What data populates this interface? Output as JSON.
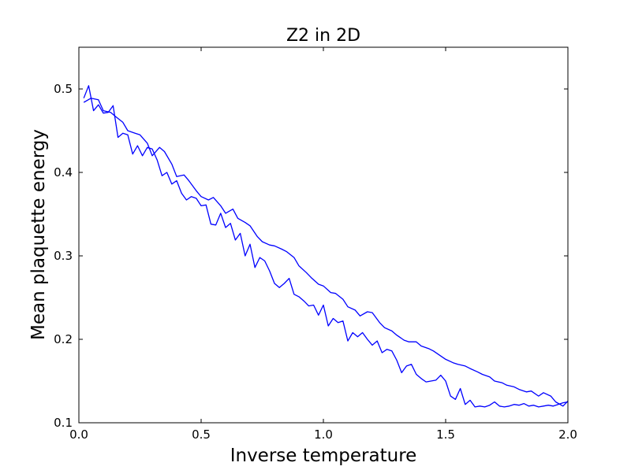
{
  "chart_data": {
    "type": "line",
    "title": "Z2 in 2D",
    "xlabel": "Inverse temperature",
    "ylabel": "Mean plaquette energy",
    "xlim": [
      0.0,
      2.0
    ],
    "ylim": [
      0.1,
      0.55
    ],
    "grid": false,
    "x_ticks": [
      "0.0",
      "0.5",
      "1.0",
      "1.5",
      "2.0"
    ],
    "y_ticks": [
      "0.1",
      "0.2",
      "0.3",
      "0.4",
      "0.5"
    ],
    "color": "#0000ff",
    "series": [
      {
        "x": [
          0.02,
          0.04,
          0.06,
          0.08,
          0.1,
          0.12,
          0.14,
          0.16,
          0.18,
          0.2,
          0.22,
          0.24,
          0.26,
          0.28,
          0.3,
          0.32,
          0.34,
          0.36,
          0.38,
          0.4,
          0.42,
          0.44,
          0.46,
          0.48,
          0.5,
          0.52,
          0.54,
          0.56,
          0.58,
          0.6,
          0.62,
          0.64,
          0.66,
          0.68,
          0.7,
          0.72,
          0.74,
          0.76,
          0.78,
          0.8,
          0.82,
          0.84,
          0.86,
          0.88,
          0.9,
          0.92,
          0.94,
          0.96,
          0.98,
          1.0,
          1.02,
          1.04,
          1.06,
          1.08,
          1.1,
          1.12,
          1.14,
          1.16,
          1.18,
          1.2,
          1.22,
          1.24,
          1.26,
          1.28,
          1.3,
          1.32,
          1.34,
          1.36,
          1.38,
          1.4,
          1.42,
          1.44,
          1.46,
          1.48,
          1.5,
          1.52,
          1.54,
          1.56,
          1.58,
          1.6,
          1.62,
          1.64,
          1.66,
          1.68,
          1.7,
          1.72,
          1.74,
          1.76,
          1.78,
          1.8,
          1.82,
          1.84,
          1.86,
          1.88,
          1.9,
          1.92,
          1.94,
          1.96,
          1.98,
          2.0
        ],
        "y": [
          0.489,
          0.504,
          0.474,
          0.481,
          0.471,
          0.472,
          0.48,
          0.442,
          0.447,
          0.445,
          0.422,
          0.432,
          0.42,
          0.43,
          0.428,
          0.415,
          0.396,
          0.4,
          0.386,
          0.39,
          0.375,
          0.367,
          0.371,
          0.369,
          0.36,
          0.361,
          0.338,
          0.337,
          0.351,
          0.334,
          0.339,
          0.319,
          0.327,
          0.3,
          0.314,
          0.286,
          0.298,
          0.294,
          0.282,
          0.267,
          0.262,
          0.267,
          0.273,
          0.254,
          0.251,
          0.246,
          0.24,
          0.241,
          0.229,
          0.241,
          0.216,
          0.225,
          0.22,
          0.222,
          0.198,
          0.208,
          0.203,
          0.208,
          0.2,
          0.193,
          0.198,
          0.184,
          0.188,
          0.186,
          0.175,
          0.16,
          0.168,
          0.17,
          0.158,
          0.153,
          0.149,
          0.15,
          0.151,
          0.157,
          0.15,
          0.132,
          0.128,
          0.141,
          0.122,
          0.127,
          0.119,
          0.12,
          0.119,
          0.121,
          0.125,
          0.12,
          0.119,
          0.12,
          0.122,
          0.121,
          0.123,
          0.12,
          0.121,
          0.119,
          0.12,
          0.121,
          0.12,
          0.122,
          0.124,
          0.125
        ]
      },
      {
        "x": [
          0.02,
          0.05,
          0.08,
          0.1,
          0.13,
          0.15,
          0.18,
          0.2,
          0.23,
          0.25,
          0.28,
          0.3,
          0.33,
          0.35,
          0.38,
          0.4,
          0.43,
          0.45,
          0.48,
          0.5,
          0.53,
          0.55,
          0.58,
          0.6,
          0.63,
          0.65,
          0.68,
          0.7,
          0.73,
          0.75,
          0.78,
          0.8,
          0.83,
          0.85,
          0.88,
          0.9,
          0.93,
          0.95,
          0.98,
          1.0,
          1.03,
          1.05,
          1.08,
          1.1,
          1.13,
          1.15,
          1.18,
          1.2,
          1.23,
          1.25,
          1.28,
          1.3,
          1.33,
          1.35,
          1.38,
          1.4,
          1.43,
          1.45,
          1.48,
          1.5,
          1.53,
          1.55,
          1.58,
          1.6,
          1.63,
          1.65,
          1.68,
          1.7,
          1.73,
          1.75,
          1.78,
          1.8,
          1.83,
          1.85,
          1.88,
          1.9,
          1.93,
          1.95,
          1.98,
          2.0
        ],
        "y": [
          0.484,
          0.489,
          0.487,
          0.474,
          0.472,
          0.467,
          0.46,
          0.45,
          0.447,
          0.445,
          0.435,
          0.42,
          0.43,
          0.425,
          0.41,
          0.395,
          0.397,
          0.39,
          0.378,
          0.371,
          0.367,
          0.37,
          0.36,
          0.351,
          0.356,
          0.345,
          0.34,
          0.336,
          0.323,
          0.317,
          0.313,
          0.312,
          0.308,
          0.305,
          0.298,
          0.288,
          0.28,
          0.274,
          0.266,
          0.264,
          0.256,
          0.255,
          0.248,
          0.239,
          0.235,
          0.228,
          0.233,
          0.232,
          0.22,
          0.214,
          0.21,
          0.205,
          0.199,
          0.197,
          0.197,
          0.192,
          0.189,
          0.186,
          0.18,
          0.176,
          0.172,
          0.17,
          0.168,
          0.165,
          0.161,
          0.158,
          0.155,
          0.15,
          0.148,
          0.145,
          0.143,
          0.14,
          0.137,
          0.138,
          0.132,
          0.136,
          0.132,
          0.125,
          0.12,
          0.126
        ]
      }
    ]
  }
}
